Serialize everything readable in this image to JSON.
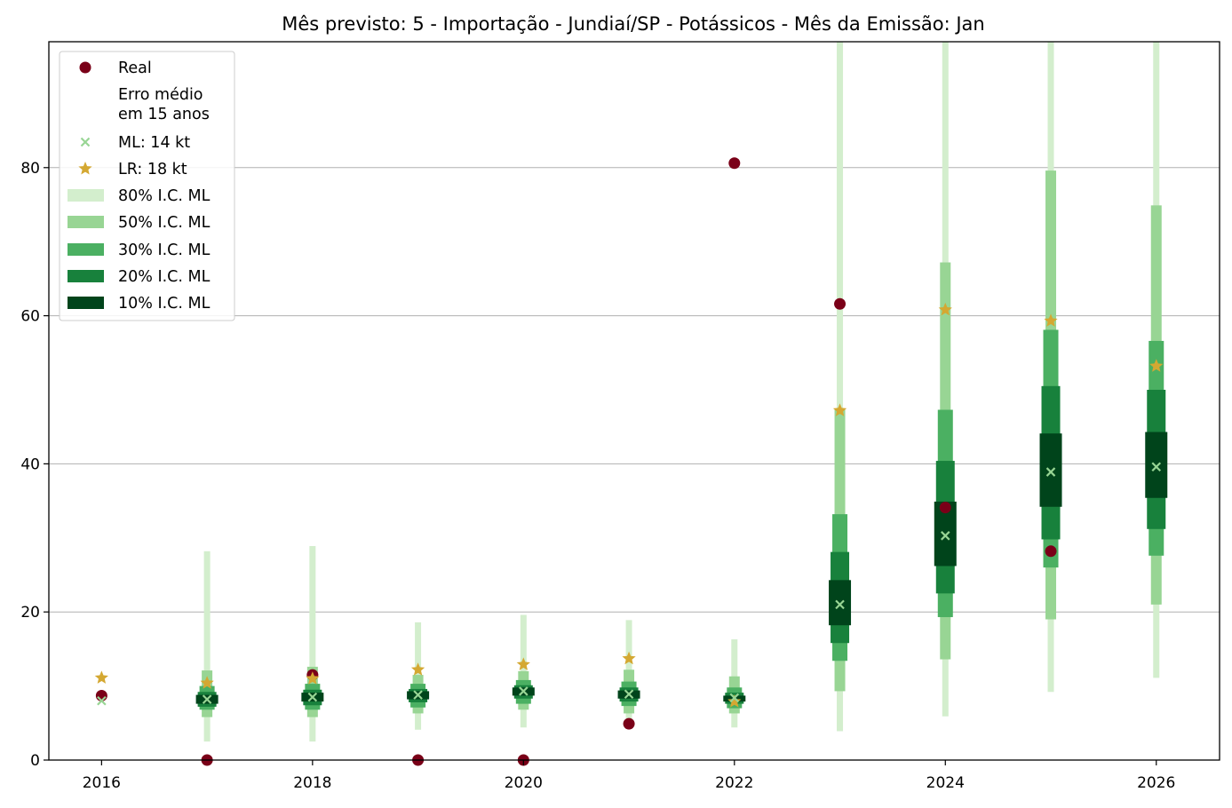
{
  "chart_data": {
    "type": "scatter",
    "title": "Mês previsto: 5 - Importação - Jundiaí/SP - Potássicos - Mês da Emissão: Jan",
    "xlabel": "",
    "ylabel": "",
    "xlim": [
      2015.5,
      2026.6
    ],
    "ylim": [
      0,
      97
    ],
    "x_ticks": [
      2016,
      2018,
      2020,
      2022,
      2024,
      2026
    ],
    "y_ticks": [
      0,
      20,
      40,
      60,
      80
    ],
    "grid": "horizontal",
    "legend_position": "upper-left",
    "legend": [
      {
        "label": "Real",
        "kind": "circle",
        "color": "#7a0018"
      },
      {
        "label": "Erro médio\nem 15 anos",
        "kind": "none",
        "color": ""
      },
      {
        "label": "ML: 14 kt",
        "kind": "x",
        "color": "#98d594"
      },
      {
        "label": "LR: 18 kt",
        "kind": "star",
        "color": "#d4a832"
      },
      {
        "label": "80% I.C. ML",
        "kind": "band",
        "color": "#d3eecd"
      },
      {
        "label": "50% I.C. ML",
        "kind": "band",
        "color": "#98d594"
      },
      {
        "label": "30% I.C. ML",
        "kind": "band",
        "color": "#4bb062"
      },
      {
        "label": "20% I.C. ML",
        "kind": "band",
        "color": "#18813c"
      },
      {
        "label": "10% I.C. ML",
        "kind": "band",
        "color": "#00441b"
      }
    ],
    "colors": {
      "real": "#7a0018",
      "ml": "#98d594",
      "lr": "#d4a832",
      "ci80": "#d3eecd",
      "ci50": "#98d594",
      "ci30": "#4bb062",
      "ci20": "#18813c",
      "ci10": "#00441b"
    },
    "series": [
      {
        "name": "Real",
        "x": [
          2016,
          2017,
          2018,
          2019,
          2020,
          2021,
          2022,
          2023,
          2024,
          2025
        ],
        "y": [
          8.7,
          0,
          11.5,
          0,
          0,
          4.9,
          80.6,
          61.6,
          34.1,
          28.2
        ]
      },
      {
        "name": "ML: 14 kt",
        "x": [
          2016,
          2017,
          2018,
          2019,
          2020,
          2021,
          2022,
          2023,
          2024,
          2025,
          2026
        ],
        "y": [
          8.0,
          8.2,
          8.5,
          8.8,
          9.3,
          8.9,
          8.4,
          21.0,
          30.3,
          38.9,
          39.6
        ]
      },
      {
        "name": "LR: 18 kt",
        "x": [
          2016,
          2017,
          2018,
          2019,
          2020,
          2021,
          2022,
          2023,
          2024,
          2025,
          2026
        ],
        "y": [
          11.1,
          10.4,
          11.0,
          12.2,
          12.9,
          13.7,
          7.9,
          47.2,
          60.8,
          59.3,
          53.2
        ]
      }
    ],
    "intervals": [
      {
        "x": 2017,
        "ci80": [
          2.5,
          28.2
        ],
        "ci50": [
          5.8,
          12.1
        ],
        "ci30": [
          6.8,
          10.0
        ],
        "ci20": [
          7.2,
          9.2
        ],
        "ci10": [
          7.6,
          8.8
        ]
      },
      {
        "x": 2018,
        "ci80": [
          2.5,
          28.9
        ],
        "ci50": [
          5.8,
          12.6
        ],
        "ci30": [
          6.8,
          10.3
        ],
        "ci20": [
          7.4,
          9.5
        ],
        "ci10": [
          7.9,
          9.1
        ]
      },
      {
        "x": 2019,
        "ci80": [
          4.1,
          18.6
        ],
        "ci50": [
          6.3,
          11.5
        ],
        "ci30": [
          7.1,
          10.3
        ],
        "ci20": [
          7.8,
          9.6
        ],
        "ci10": [
          8.2,
          9.3
        ]
      },
      {
        "x": 2020,
        "ci80": [
          4.4,
          19.6
        ],
        "ci50": [
          6.8,
          12.0
        ],
        "ci30": [
          7.6,
          10.8
        ],
        "ci20": [
          8.3,
          10.1
        ],
        "ci10": [
          8.7,
          9.8
        ]
      },
      {
        "x": 2021,
        "ci80": [
          4.3,
          18.9
        ],
        "ci50": [
          6.3,
          12.2
        ],
        "ci30": [
          7.3,
          10.6
        ],
        "ci20": [
          7.9,
          9.8
        ],
        "ci10": [
          8.3,
          9.4
        ]
      },
      {
        "x": 2022,
        "ci80": [
          4.4,
          16.3
        ],
        "ci50": [
          6.3,
          11.3
        ],
        "ci30": [
          7.0,
          9.8
        ],
        "ci20": [
          7.6,
          9.1
        ],
        "ci10": [
          7.9,
          8.7
        ]
      },
      {
        "x": 2023,
        "ci80": [
          3.9,
          97
        ],
        "ci50": [
          9.3,
          47.3
        ],
        "ci30": [
          13.4,
          33.2
        ],
        "ci20": [
          15.8,
          28.1
        ],
        "ci10": [
          18.2,
          24.3
        ]
      },
      {
        "x": 2024,
        "ci80": [
          5.9,
          97
        ],
        "ci50": [
          13.6,
          67.2
        ],
        "ci30": [
          19.3,
          47.3
        ],
        "ci20": [
          22.5,
          40.4
        ],
        "ci10": [
          26.2,
          34.9
        ]
      },
      {
        "x": 2025,
        "ci80": [
          9.2,
          97
        ],
        "ci50": [
          19.0,
          79.6
        ],
        "ci30": [
          26.0,
          58.1
        ],
        "ci20": [
          29.8,
          50.5
        ],
        "ci10": [
          34.2,
          44.1
        ]
      },
      {
        "x": 2026,
        "ci80": [
          11.1,
          97
        ],
        "ci50": [
          21.0,
          74.9
        ],
        "ci30": [
          27.6,
          56.6
        ],
        "ci20": [
          31.2,
          50.0
        ],
        "ci10": [
          35.4,
          44.3
        ]
      }
    ]
  }
}
